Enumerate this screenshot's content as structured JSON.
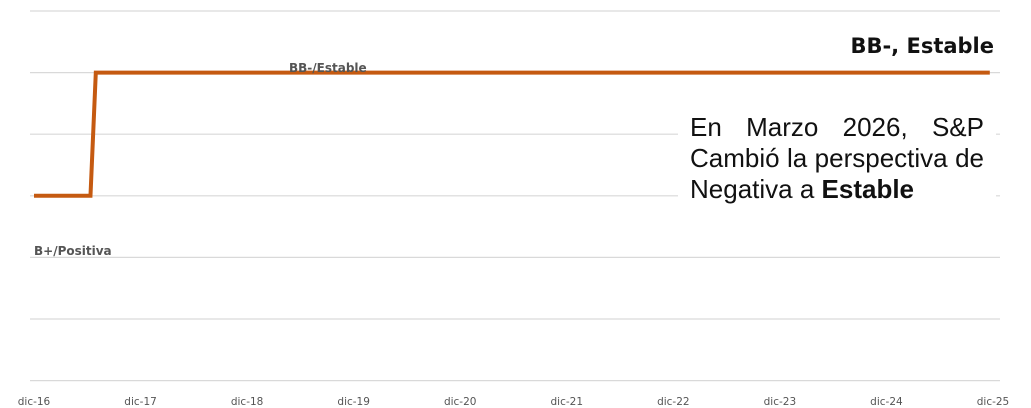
{
  "chart_data": {
    "type": "line",
    "x_ticks": [
      "dic-16",
      "dic-17",
      "dic-18",
      "dic-19",
      "dic-20",
      "dic-21",
      "dic-22",
      "dic-23",
      "dic-24",
      "dic-25"
    ],
    "x_range": [
      0,
      9
    ],
    "y_levels": 6,
    "grid": true,
    "series": [
      {
        "color": "#c55a11",
        "points": [
          {
            "x": 0.0,
            "y": 3
          },
          {
            "x": 0.53,
            "y": 3
          },
          {
            "x": 0.58,
            "y": 5
          },
          {
            "x": 8.97,
            "y": 5
          }
        ]
      }
    ],
    "annotations": {
      "initial_rating": "B+/Positiva",
      "upgraded_rating": "BB-/Estable"
    },
    "current_rating": "BB-, Estable",
    "note": {
      "text_plain": "En Marzo 2026, S&P Cambió la perspectiva de Negativa a ",
      "text_bold": "Estable"
    }
  }
}
